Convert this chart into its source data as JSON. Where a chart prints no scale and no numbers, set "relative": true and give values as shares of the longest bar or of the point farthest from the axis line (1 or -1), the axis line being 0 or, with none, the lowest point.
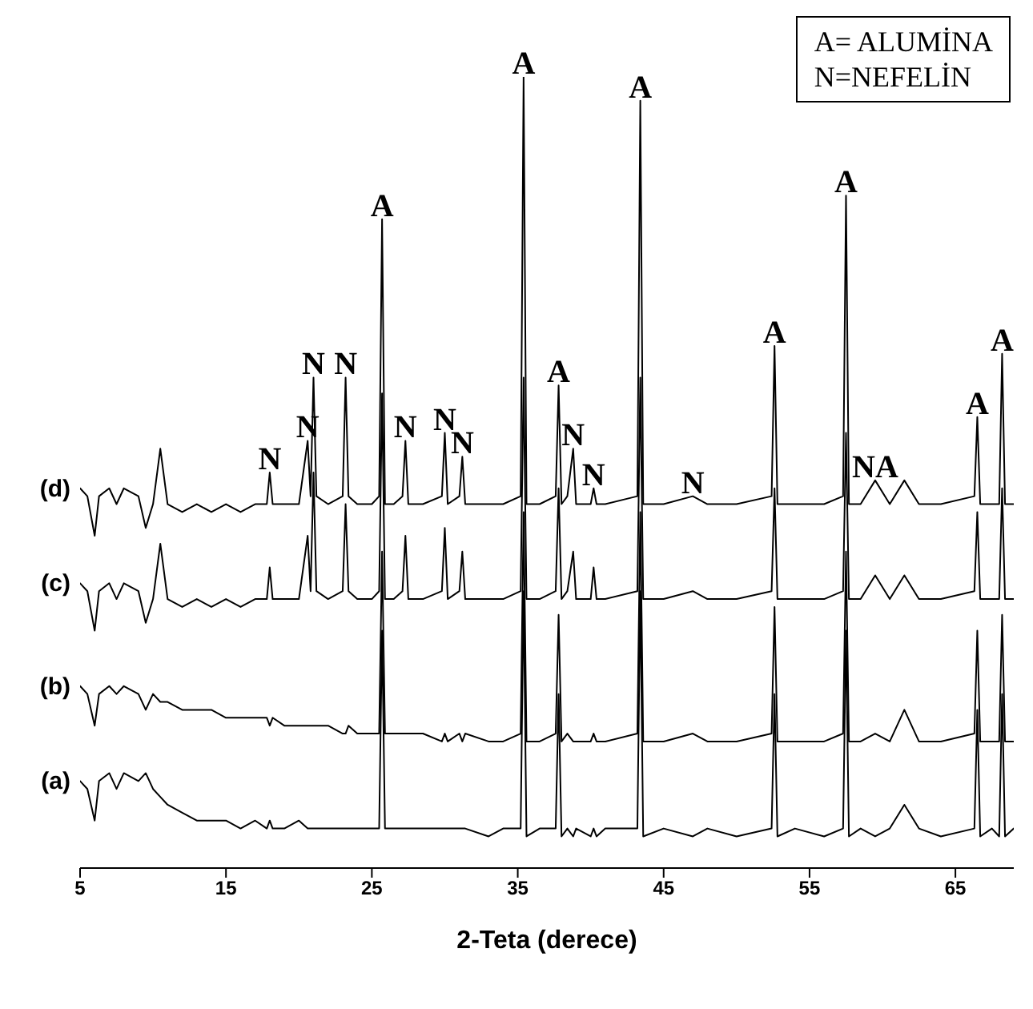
{
  "chart_data": {
    "type": "line",
    "relative": true,
    "xlabel": "2-Teta (derece)",
    "xlim": [
      5,
      69
    ],
    "xticks": [
      5,
      15,
      25,
      35,
      45,
      55,
      65
    ],
    "x": [
      5,
      5.5,
      6,
      6.3,
      7,
      7.5,
      8,
      9,
      9.5,
      10,
      10.5,
      11,
      12,
      13,
      14,
      15,
      16,
      17,
      17.8,
      18,
      18.2,
      19,
      20,
      20.6,
      20.8,
      21,
      21.2,
      22,
      23,
      23.2,
      23.4,
      24,
      25,
      25.5,
      25.7,
      25.9,
      26.5,
      27.1,
      27.3,
      27.5,
      28.5,
      29.8,
      30,
      30.2,
      31,
      31.2,
      31.4,
      33,
      34,
      35.2,
      35.4,
      35.6,
      36.5,
      37.6,
      37.8,
      38,
      38.4,
      38.8,
      39,
      40,
      40.2,
      40.4,
      41,
      43.2,
      43.4,
      43.6,
      45,
      47,
      48,
      50,
      52.4,
      52.6,
      52.8,
      54,
      56,
      57.3,
      57.5,
      57.7,
      58.5,
      59.5,
      60.5,
      61.5,
      62.5,
      64,
      66.3,
      66.5,
      66.7,
      67.5,
      68,
      68.2,
      68.4,
      69
    ],
    "series": [
      {
        "name": "(d)",
        "color": "#000000",
        "values": [
          0.48,
          0.47,
          0.42,
          0.47,
          0.48,
          0.46,
          0.48,
          0.47,
          0.43,
          0.46,
          0.53,
          0.46,
          0.45,
          0.46,
          0.45,
          0.46,
          0.45,
          0.46,
          0.46,
          0.5,
          0.46,
          0.46,
          0.46,
          0.54,
          0.47,
          0.62,
          0.47,
          0.46,
          0.47,
          0.62,
          0.47,
          0.46,
          0.46,
          0.47,
          0.82,
          0.46,
          0.46,
          0.47,
          0.54,
          0.46,
          0.46,
          0.47,
          0.55,
          0.46,
          0.47,
          0.52,
          0.46,
          0.46,
          0.46,
          0.47,
          1.0,
          0.46,
          0.46,
          0.47,
          0.61,
          0.46,
          0.47,
          0.53,
          0.46,
          0.46,
          0.48,
          0.46,
          0.46,
          0.47,
          0.97,
          0.46,
          0.46,
          0.47,
          0.46,
          0.46,
          0.47,
          0.66,
          0.46,
          0.46,
          0.46,
          0.47,
          0.85,
          0.46,
          0.46,
          0.49,
          0.46,
          0.49,
          0.46,
          0.46,
          0.47,
          0.57,
          0.46,
          0.46,
          0.46,
          0.65,
          0.46,
          0.46
        ]
      },
      {
        "name": "(c)",
        "color": "#000000",
        "values": [
          0.36,
          0.35,
          0.3,
          0.35,
          0.36,
          0.34,
          0.36,
          0.35,
          0.31,
          0.34,
          0.41,
          0.34,
          0.33,
          0.34,
          0.33,
          0.34,
          0.33,
          0.34,
          0.34,
          0.38,
          0.34,
          0.34,
          0.34,
          0.42,
          0.35,
          0.5,
          0.35,
          0.34,
          0.35,
          0.46,
          0.35,
          0.34,
          0.34,
          0.35,
          0.6,
          0.34,
          0.34,
          0.35,
          0.42,
          0.34,
          0.34,
          0.35,
          0.43,
          0.34,
          0.35,
          0.4,
          0.34,
          0.34,
          0.34,
          0.35,
          0.62,
          0.34,
          0.34,
          0.35,
          0.48,
          0.34,
          0.35,
          0.4,
          0.34,
          0.34,
          0.38,
          0.34,
          0.34,
          0.35,
          0.62,
          0.34,
          0.34,
          0.35,
          0.34,
          0.34,
          0.35,
          0.48,
          0.34,
          0.34,
          0.34,
          0.35,
          0.55,
          0.34,
          0.34,
          0.37,
          0.34,
          0.37,
          0.34,
          0.34,
          0.35,
          0.45,
          0.34,
          0.34,
          0.34,
          0.48,
          0.34,
          0.34
        ]
      },
      {
        "name": "(b)",
        "color": "#000000",
        "values": [
          0.23,
          0.22,
          0.18,
          0.22,
          0.23,
          0.22,
          0.23,
          0.22,
          0.2,
          0.22,
          0.21,
          0.21,
          0.2,
          0.2,
          0.2,
          0.19,
          0.19,
          0.19,
          0.19,
          0.18,
          0.19,
          0.18,
          0.18,
          0.18,
          0.18,
          0.18,
          0.18,
          0.18,
          0.17,
          0.17,
          0.18,
          0.17,
          0.17,
          0.17,
          0.4,
          0.17,
          0.17,
          0.17,
          0.17,
          0.17,
          0.17,
          0.16,
          0.17,
          0.16,
          0.17,
          0.16,
          0.17,
          0.16,
          0.16,
          0.17,
          0.45,
          0.16,
          0.16,
          0.17,
          0.32,
          0.16,
          0.17,
          0.16,
          0.16,
          0.16,
          0.17,
          0.16,
          0.16,
          0.17,
          0.45,
          0.16,
          0.16,
          0.17,
          0.16,
          0.16,
          0.17,
          0.33,
          0.16,
          0.16,
          0.16,
          0.17,
          0.4,
          0.16,
          0.16,
          0.17,
          0.16,
          0.2,
          0.16,
          0.16,
          0.17,
          0.3,
          0.16,
          0.16,
          0.16,
          0.32,
          0.16,
          0.16
        ]
      },
      {
        "name": "(a)",
        "color": "#000000",
        "values": [
          0.11,
          0.1,
          0.06,
          0.11,
          0.12,
          0.1,
          0.12,
          0.11,
          0.12,
          0.1,
          0.09,
          0.08,
          0.07,
          0.06,
          0.06,
          0.06,
          0.05,
          0.06,
          0.05,
          0.06,
          0.05,
          0.05,
          0.06,
          0.05,
          0.05,
          0.05,
          0.05,
          0.05,
          0.05,
          0.05,
          0.05,
          0.05,
          0.05,
          0.05,
          0.3,
          0.05,
          0.05,
          0.05,
          0.05,
          0.05,
          0.05,
          0.05,
          0.05,
          0.05,
          0.05,
          0.05,
          0.05,
          0.04,
          0.05,
          0.05,
          0.35,
          0.04,
          0.05,
          0.05,
          0.22,
          0.04,
          0.05,
          0.04,
          0.05,
          0.04,
          0.05,
          0.04,
          0.05,
          0.05,
          0.35,
          0.04,
          0.05,
          0.04,
          0.05,
          0.04,
          0.05,
          0.22,
          0.04,
          0.05,
          0.04,
          0.05,
          0.3,
          0.04,
          0.05,
          0.04,
          0.05,
          0.08,
          0.05,
          0.04,
          0.05,
          0.2,
          0.04,
          0.05,
          0.04,
          0.22,
          0.04,
          0.05
        ]
      }
    ],
    "annotations": [
      "A= ALUMİNA",
      "N=NEFELİN",
      {
        "text": "A",
        "x": 25.7,
        "y": 0.82
      },
      {
        "text": "A",
        "x": 35.4,
        "y": 1.0
      },
      {
        "text": "A",
        "x": 37.8,
        "y": 0.61
      },
      {
        "text": "A",
        "x": 43.4,
        "y": 0.97
      },
      {
        "text": "A",
        "x": 52.6,
        "y": 0.66
      },
      {
        "text": "A",
        "x": 57.5,
        "y": 0.85
      },
      {
        "text": "A",
        "x": 66.5,
        "y": 0.57
      },
      {
        "text": "A",
        "x": 68.2,
        "y": 0.65
      },
      {
        "text": "N",
        "x": 18,
        "y": 0.5
      },
      {
        "text": "N",
        "x": 20.6,
        "y": 0.54
      },
      {
        "text": "N",
        "x": 21,
        "y": 0.62
      },
      {
        "text": "N",
        "x": 23.2,
        "y": 0.62
      },
      {
        "text": "N",
        "x": 27.3,
        "y": 0.54
      },
      {
        "text": "N",
        "x": 30,
        "y": 0.55
      },
      {
        "text": "N",
        "x": 31.2,
        "y": 0.52
      },
      {
        "text": "N",
        "x": 38.8,
        "y": 0.53
      },
      {
        "text": "N",
        "x": 40.2,
        "y": 0.48
      },
      {
        "text": "N",
        "x": 47,
        "y": 0.47
      },
      {
        "text": "NA",
        "x": 59.5,
        "y": 0.49
      }
    ]
  }
}
